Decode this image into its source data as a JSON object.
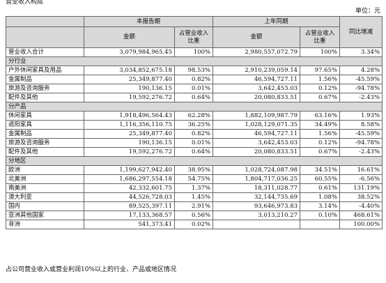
{
  "caption": "营业收入构成",
  "unit": "单位：元",
  "table": {
    "header": {
      "period_current": "本报告期",
      "period_prior": "上年同期",
      "change": "同比增减",
      "amount_current": "金额",
      "ratio_current": "占营业收入比重",
      "amount_prior": "金额",
      "ratio_prior": "占营业收入比重"
    },
    "rows": [
      [
        "营业收入合计",
        "3,079,984,965.45",
        "100%",
        "2,980,557,072.79",
        "100%",
        "3.34%"
      ],
      [
        "分行业"
      ],
      [
        "户外休闲家具及用品",
        "3,034,852,675.18",
        "98.53%",
        "2,910,239,059.14",
        "97.65%",
        "4.28%"
      ],
      [
        "金属制品",
        "25,349,877.40",
        "0.82%",
        "46,594,727.11",
        "1.56%",
        "-45.59%"
      ],
      [
        "旅游及咨询服务",
        "190,136.15",
        "0.01%",
        "3,642,453.03",
        "0.12%",
        "-94.78%"
      ],
      [
        "配件及其他",
        "19,592,276.72",
        "0.64%",
        "20,080,833.51",
        "0.67%",
        "-2.43%"
      ],
      [
        "分产品"
      ],
      [
        "休闲家具",
        "1,918,496,564.43",
        "62.28%",
        "1,882,109,987.79",
        "63.16%",
        "1.93%"
      ],
      [
        "遮阳家具",
        "1,116,356,110.75",
        "36.25%",
        "1,028,129,071.35",
        "34.49%",
        "8.58%"
      ],
      [
        "金属制品",
        "25,349,877.40",
        "0.82%",
        "46,594,727.11",
        "1.56%",
        "-45.59%"
      ],
      [
        "旅游及咨询服务",
        "190,136.15",
        "0.01%",
        "3,642,453.03",
        "0.12%",
        "-94.78%"
      ],
      [
        "配件及其他",
        "19,592,276.72",
        "0.64%",
        "20,080,833.51",
        "0.67%",
        "-2.43%"
      ],
      [
        "分地区"
      ],
      [
        "欧洲",
        "1,199,627,942.40",
        "38.95%",
        "1,028,724,087.98",
        "34.51%",
        "16.61%"
      ],
      [
        "北美洲",
        "1,686,297,554.18",
        "54.75%",
        "1,804,717,036.25",
        "60.55%",
        "-6.56%"
      ],
      [
        "南美洲",
        "42,332,601.75",
        "1.37%",
        "18,311,028.77",
        "0.61%",
        "131.19%"
      ],
      [
        "澳大利亚",
        "44,526,728.03",
        "1.45%",
        "32,144,735.69",
        "1.08%",
        "38.52%"
      ],
      [
        "国内",
        "89,525,397.11",
        "2.91%",
        "93,646,973.83",
        "3.14%",
        "-4.40%"
      ],
      [
        "亚洲其他国家",
        "17,133,368.57",
        "0.56%",
        "3,013,210.27",
        "0.10%",
        "468.61%"
      ],
      [
        "非洲",
        "541,373.41",
        "0.02%",
        null,
        null,
        "100.00%"
      ]
    ]
  },
  "footnote": "占公司营业收入或营业利润10%以上的行业、产品或地区情况"
}
